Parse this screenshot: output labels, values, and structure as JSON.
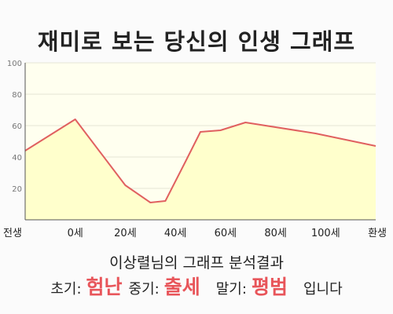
{
  "title": "재미로 보는 당신의 인생 그래프",
  "subtitle": "이상렬님의 그래프 분석결과",
  "result": {
    "early_label": "초기:",
    "early_value": "험난",
    "mid_label": "중기:",
    "mid_value": "출세",
    "late_label": "말기:",
    "late_value": "평범",
    "ending": "입니다"
  },
  "colors": {
    "line": "#e06060",
    "fill": "#ffffcc",
    "highlight": "#e8555a"
  },
  "chart_data": {
    "type": "area",
    "x_labels": [
      "전생",
      "0세",
      "20세",
      "40세",
      "60세",
      "80세",
      "100세",
      "환생"
    ],
    "x": [
      -20,
      0,
      20,
      40,
      60,
      80,
      100,
      120
    ],
    "points": [
      {
        "x": -20,
        "y": 44
      },
      {
        "x": 0,
        "y": 64
      },
      {
        "x": 20,
        "y": 22
      },
      {
        "x": 30,
        "y": 11
      },
      {
        "x": 36,
        "y": 12
      },
      {
        "x": 44,
        "y": 37
      },
      {
        "x": 50,
        "y": 56
      },
      {
        "x": 58,
        "y": 57
      },
      {
        "x": 68,
        "y": 62
      },
      {
        "x": 96,
        "y": 55
      },
      {
        "x": 120,
        "y": 47
      }
    ],
    "y_ticks": [
      20,
      40,
      60,
      80,
      100
    ],
    "ylim": [
      0,
      100
    ],
    "xlim": [
      -20,
      120
    ],
    "grid": true,
    "legend": false
  }
}
